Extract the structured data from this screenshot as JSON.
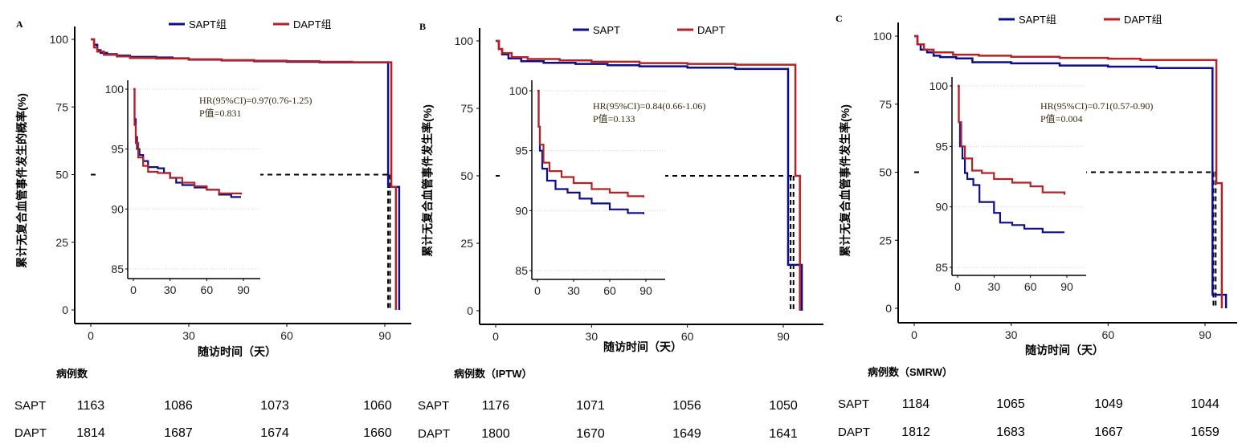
{
  "colors": {
    "SAPT": "#0d0d8a",
    "DAPT": "#b52226",
    "axis": "#000000",
    "grid": "#d0d0d0"
  },
  "chart_data": [
    {
      "panel_label": "A",
      "type": "line",
      "legend": [
        "SAPT组",
        "DAPT组"
      ],
      "legend_position": "top",
      "ylabel": "累计无复合血管事件发生的概率(%)",
      "xlabel": "随访时间（天）",
      "xticks": [
        0,
        30,
        60,
        90
      ],
      "yticks": [
        0,
        25,
        50,
        75,
        100
      ],
      "xlim": [
        -3,
        98
      ],
      "ylim": [
        -5,
        105
      ],
      "reference_line": 50,
      "median_lines": [
        91,
        91.6
      ],
      "series": [
        {
          "name": "SAPT组",
          "x": [
            0,
            1,
            2,
            3,
            5,
            8,
            12,
            20,
            25,
            30,
            40,
            50,
            60,
            70,
            80,
            91,
            91.1,
            94.4
          ],
          "y": [
            100,
            98,
            96,
            95,
            94.5,
            94,
            93.5,
            93.3,
            93,
            92.5,
            92.2,
            91.9,
            91.7,
            91.5,
            91.5,
            45.5,
            45.5,
            0
          ]
        },
        {
          "name": "DAPT组",
          "x": [
            0,
            1,
            2,
            4,
            8,
            12,
            20,
            30,
            40,
            50,
            60,
            70,
            80,
            92,
            92.1,
            93.4
          ],
          "y": [
            100,
            97,
            95.5,
            94.3,
            93.7,
            93.1,
            92.9,
            92.6,
            92.3,
            92.1,
            91.9,
            91.7,
            91.5,
            45.5,
            45.5,
            0
          ]
        }
      ],
      "inset": {
        "xticks": [
          0,
          30,
          60,
          90
        ],
        "yticks": [
          85,
          90,
          95,
          100
        ],
        "xlim": [
          -3,
          102
        ],
        "ylim": [
          84.3,
          101
        ],
        "grid": true,
        "hr_text": "HR(95%CI)=0.97(0.76-1.25)",
        "p_text": "P值=0.831",
        "series": [
          {
            "name": "SAPT组",
            "x": [
              0,
              1,
              2,
              3,
              5,
              8,
              12,
              20,
              25,
              30,
              35,
              40,
              50,
              60,
              70,
              80,
              88
            ],
            "y": [
              100,
              97.5,
              96,
              95,
              94.5,
              94,
              93.5,
              93.4,
              93,
              92.6,
              92.2,
              92,
              91.8,
              91.6,
              91.2,
              91,
              91
            ]
          },
          {
            "name": "DAPT组",
            "x": [
              0,
              1,
              2,
              4,
              8,
              12,
              20,
              30,
              40,
              50,
              60,
              70,
              80,
              88
            ],
            "y": [
              100,
              97,
              95.5,
              94.3,
              93.6,
              93.1,
              93,
              92.6,
              92.2,
              91.9,
              91.6,
              91.3,
              91.3,
              91.2
            ]
          }
        ]
      },
      "risk_table": {
        "title": "病例数",
        "rows": [
          {
            "label": "SAPT",
            "values": [
              1163,
              1086,
              1073,
              1060
            ]
          },
          {
            "label": "DAPT",
            "values": [
              1814,
              1687,
              1674,
              1660
            ]
          }
        ]
      }
    },
    {
      "panel_label": "B",
      "type": "line",
      "legend": [
        "SAPT",
        "DAPT"
      ],
      "legend_position": "top",
      "ylabel": "累计无复合血管事件发生率(%)",
      "xlabel": "随访时间（天）",
      "xticks": [
        0,
        30,
        60,
        90
      ],
      "yticks": [
        0,
        25,
        50,
        75,
        100
      ],
      "xlim": [
        -3,
        98
      ],
      "ylim": [
        -5,
        105
      ],
      "reference_line": 50,
      "median_lines": [
        92.3,
        93.2
      ],
      "series": [
        {
          "name": "SAPT",
          "x": [
            0,
            1,
            2,
            4,
            8,
            15,
            25,
            35,
            45,
            60,
            75,
            91.5,
            91.6,
            95.8
          ],
          "y": [
            100,
            97,
            95,
            93.5,
            92.5,
            91.9,
            91.5,
            91,
            90.6,
            90.1,
            89.6,
            17,
            17,
            0
          ]
        },
        {
          "name": "DAPT",
          "x": [
            0,
            1,
            2,
            5,
            10,
            20,
            30,
            45,
            60,
            75,
            93.8,
            93.9,
            95.2
          ],
          "y": [
            100,
            97,
            95.5,
            94,
            93.3,
            92.8,
            92.3,
            91.8,
            91.5,
            91.2,
            50,
            50,
            0
          ]
        }
      ],
      "inset": {
        "xticks": [
          0,
          30,
          60,
          90
        ],
        "yticks": [
          85,
          90,
          95,
          100
        ],
        "xlim": [
          -3,
          105
        ],
        "ylim": [
          84.3,
          101
        ],
        "grid": true,
        "hr_text": "HR(95%CI)=0.84(0.66-1.06)",
        "p_text": "P值=0.133",
        "series": [
          {
            "name": "SAPT",
            "x": [
              0,
              1,
              2,
              4,
              8,
              15,
              25,
              35,
              45,
              60,
              75,
              88
            ],
            "y": [
              100,
              97,
              95,
              93.5,
              92.5,
              91.8,
              91.5,
              91,
              90.6,
              90.1,
              89.8,
              89.7
            ]
          },
          {
            "name": "DAPT",
            "x": [
              0,
              1,
              2,
              5,
              10,
              20,
              30,
              45,
              60,
              75,
              88
            ],
            "y": [
              100,
              97,
              95.5,
              94,
              93.3,
              92.8,
              92.3,
              91.8,
              91.5,
              91.2,
              91.1
            ]
          }
        ]
      },
      "risk_table": {
        "title": "病例数（IPTW）",
        "rows": [
          {
            "label": "SAPT",
            "values": [
              1176,
              1071,
              1056,
              1050
            ]
          },
          {
            "label": "DAPT",
            "values": [
              1800,
              1670,
              1649,
              1641
            ]
          }
        ]
      }
    },
    {
      "panel_label": "C",
      "type": "line",
      "legend": [
        "SAPT组",
        "DAPT组"
      ],
      "legend_position": "top",
      "ylabel": "累计无复合血管事件发生率(%)",
      "xlabel": "随访时间（天）",
      "xticks": [
        0,
        30,
        60,
        90
      ],
      "yticks": [
        0,
        25,
        50,
        75,
        100
      ],
      "xlim": [
        -3,
        98
      ],
      "ylim": [
        -5,
        105
      ],
      "reference_line": 50,
      "median_lines": [
        92.6,
        93.3
      ],
      "series": [
        {
          "name": "SAPT组",
          "x": [
            0,
            1,
            2,
            4,
            6,
            8,
            13,
            18,
            30,
            45,
            60,
            75,
            92.3,
            92.4,
            96.5
          ],
          "y": [
            100,
            97,
            95,
            94,
            92.8,
            92.3,
            91.8,
            90.4,
            90,
            89.2,
            88.8,
            88.3,
            5,
            5,
            0
          ]
        },
        {
          "name": "DAPT组",
          "x": [
            0,
            1,
            3,
            6,
            12,
            20,
            30,
            45,
            60,
            70,
            93.5,
            93.6,
            95.2
          ],
          "y": [
            100,
            97,
            95,
            94,
            93.2,
            92.8,
            92.4,
            92,
            91.7,
            91.2,
            46,
            46,
            0
          ]
        }
      ],
      "inset": {
        "xticks": [
          0,
          30,
          60,
          90
        ],
        "yticks": [
          85,
          90,
          95,
          100
        ],
        "xlim": [
          -3,
          105
        ],
        "ylim": [
          84.3,
          101
        ],
        "grid": true,
        "hr_text": "HR(95%CI)=0.71(0.57-0.90)",
        "p_text": "P值=0.004",
        "series": [
          {
            "name": "SAPT组",
            "x": [
              0,
              1,
              2,
              4,
              6,
              8,
              13,
              18,
              25,
              30,
              35,
              45,
              55,
              70,
              88
            ],
            "y": [
              100,
              97,
              95,
              94,
              92.8,
              92.3,
              91.8,
              90.4,
              90.4,
              89.5,
              88.7,
              88.5,
              88.2,
              87.9,
              87.9
            ]
          },
          {
            "name": "DAPT组",
            "x": [
              0,
              1,
              3,
              6,
              12,
              20,
              30,
              45,
              60,
              70,
              88
            ],
            "y": [
              100,
              97,
              95,
              94,
              93,
              92.8,
              92.3,
              92,
              91.7,
              91.2,
              91
            ]
          }
        ]
      },
      "risk_table": {
        "title": "病例数（SMRW）",
        "rows": [
          {
            "label": "SAPT",
            "values": [
              1184,
              1065,
              1049,
              1044
            ]
          },
          {
            "label": "DAPT",
            "values": [
              1812,
              1683,
              1667,
              1659
            ]
          }
        ]
      }
    }
  ]
}
